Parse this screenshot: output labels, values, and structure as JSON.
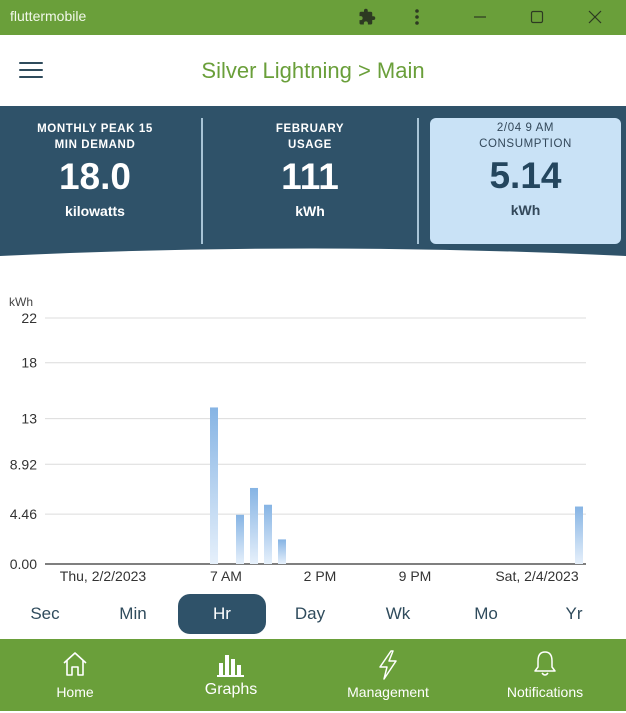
{
  "window": {
    "title": "fluttermobile"
  },
  "appbar": {
    "title": "Silver Lightning > Main"
  },
  "stats": [
    {
      "label_line1": "MONTHLY PEAK 15",
      "label_line2": "MIN DEMAND",
      "value": "18.0",
      "unit": "kilowatts"
    },
    {
      "label_line1": "FEBRUARY",
      "label_line2": "USAGE",
      "value": "111",
      "unit": "kWh"
    },
    {
      "label_line1": "2/04 9 AM",
      "label_line2": "CONSUMPTION",
      "value": "5.14",
      "unit": "kWh"
    }
  ],
  "colors": {
    "brand_green": "#6a9f3a",
    "navy": "#2f5269",
    "highlight": "#c9e2f6",
    "bar_blue": "#8ab7e6"
  },
  "chart_data": {
    "type": "bar",
    "ylabel": "kWh",
    "y_ticks": [
      "22",
      "18",
      "13",
      "8.92",
      "4.46",
      "0.00"
    ],
    "y_tick_values": [
      22,
      18,
      13,
      8.92,
      4.46,
      0
    ],
    "ylim": [
      0,
      22
    ],
    "x_ticks": [
      "Thu, 2/2/2023",
      "7 AM",
      "2 PM",
      "9 PM",
      "Sat, 2/4/2023"
    ],
    "grid": true,
    "bars": [
      {
        "x": "2/3 6 AM",
        "value": 14.0
      },
      {
        "x": "2/3 8 AM",
        "value": 4.4
      },
      {
        "x": "2/3 9 AM",
        "value": 6.8
      },
      {
        "x": "2/3 10 AM",
        "value": 5.3
      },
      {
        "x": "2/3 11 AM",
        "value": 2.2
      },
      {
        "x": "2/4 9 AM",
        "value": 5.14
      }
    ]
  },
  "range_selector": {
    "items": [
      "Sec",
      "Min",
      "Hr",
      "Day",
      "Wk",
      "Mo",
      "Yr"
    ],
    "selected": "Hr"
  },
  "bottom_nav": {
    "items": [
      {
        "label": "Home",
        "icon": "home-icon"
      },
      {
        "label": "Graphs",
        "icon": "bar-chart-icon"
      },
      {
        "label": "Management",
        "icon": "lightning-icon"
      },
      {
        "label": "Notifications",
        "icon": "bell-icon"
      }
    ],
    "selected": "Graphs"
  }
}
